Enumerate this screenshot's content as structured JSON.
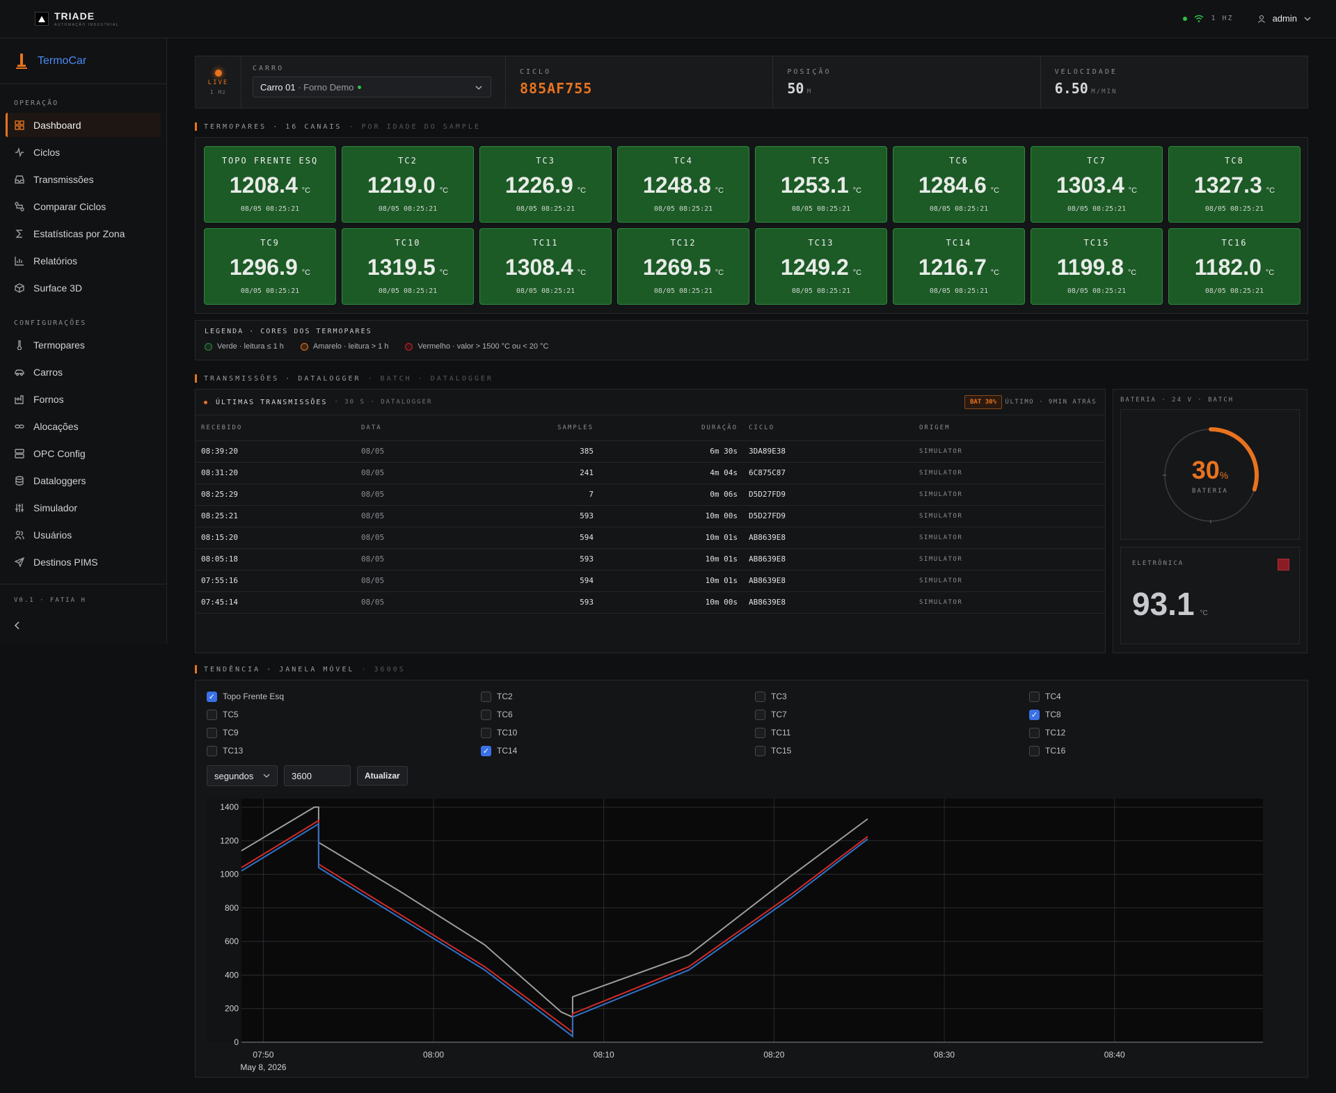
{
  "topbar": {
    "logo_title": "TRIADE",
    "logo_subtitle": "AUTOMAÇÃO INDUSTRIAL",
    "rate": "1 HZ",
    "user": "admin"
  },
  "sidebar": {
    "app_name": "TermoCar",
    "sections": [
      {
        "title": "OPERAÇÃO",
        "items": [
          {
            "label": "Dashboard",
            "icon": "grid-icon",
            "active": true
          },
          {
            "label": "Ciclos",
            "icon": "activity-icon"
          },
          {
            "label": "Transmissões",
            "icon": "inbox-icon"
          },
          {
            "label": "Comparar Ciclos",
            "icon": "compare-icon"
          },
          {
            "label": "Estatísticas por Zona",
            "icon": "sigma-icon"
          },
          {
            "label": "Relatórios",
            "icon": "bar-chart-icon"
          },
          {
            "label": "Surface 3D",
            "icon": "cube-icon"
          }
        ]
      },
      {
        "title": "CONFIGURAÇÕES",
        "items": [
          {
            "label": "Termopares",
            "icon": "thermometer-icon"
          },
          {
            "label": "Carros",
            "icon": "car-icon"
          },
          {
            "label": "Fornos",
            "icon": "factory-icon"
          },
          {
            "label": "Alocações",
            "icon": "link-icon"
          },
          {
            "label": "OPC Config",
            "icon": "server-icon"
          },
          {
            "label": "Dataloggers",
            "icon": "database-icon"
          },
          {
            "label": "Simulador",
            "icon": "sliders-icon"
          },
          {
            "label": "Usuários",
            "icon": "users-icon"
          },
          {
            "label": "Destinos PIMS",
            "icon": "send-icon"
          }
        ]
      }
    ],
    "version": "V0.1 · FATIA H"
  },
  "carbar": {
    "live": "LIVE",
    "live_rate": "1 Hz",
    "carro_label": "CARRO",
    "carro_name": "Carro 01",
    "carro_forno": " · Forno Demo",
    "ciclo_label": "CICLO",
    "ciclo_value": "885AF755",
    "posicao_label": "POSIÇÃO",
    "posicao_value": "50",
    "posicao_unit": "M",
    "velocidade_label": "VELOCIDADE",
    "velocidade_value": "6.50",
    "velocidade_unit": "M/MIN"
  },
  "termopares": {
    "header": "TERMOPARES · 16 CANAIS",
    "header_sub": "· POR IDADE DO SAMPLE",
    "unit": "°C",
    "items": [
      {
        "name": "TOPO FRENTE ESQ",
        "value": "1208.4",
        "ts": "08/05 08:25:21"
      },
      {
        "name": "TC2",
        "value": "1219.0",
        "ts": "08/05 08:25:21"
      },
      {
        "name": "TC3",
        "value": "1226.9",
        "ts": "08/05 08:25:21"
      },
      {
        "name": "TC4",
        "value": "1248.8",
        "ts": "08/05 08:25:21"
      },
      {
        "name": "TC5",
        "value": "1253.1",
        "ts": "08/05 08:25:21"
      },
      {
        "name": "TC6",
        "value": "1284.6",
        "ts": "08/05 08:25:21"
      },
      {
        "name": "TC7",
        "value": "1303.4",
        "ts": "08/05 08:25:21"
      },
      {
        "name": "TC8",
        "value": "1327.3",
        "ts": "08/05 08:25:21"
      },
      {
        "name": "TC9",
        "value": "1296.9",
        "ts": "08/05 08:25:21"
      },
      {
        "name": "TC10",
        "value": "1319.5",
        "ts": "08/05 08:25:21"
      },
      {
        "name": "TC11",
        "value": "1308.4",
        "ts": "08/05 08:25:21"
      },
      {
        "name": "TC12",
        "value": "1269.5",
        "ts": "08/05 08:25:21"
      },
      {
        "name": "TC13",
        "value": "1249.2",
        "ts": "08/05 08:25:21"
      },
      {
        "name": "TC14",
        "value": "1216.7",
        "ts": "08/05 08:25:21"
      },
      {
        "name": "TC15",
        "value": "1199.8",
        "ts": "08/05 08:25:21"
      },
      {
        "name": "TC16",
        "value": "1182.0",
        "ts": "08/05 08:25:21"
      }
    ]
  },
  "legend": {
    "title": "LEGENDA · CORES DOS TERMOPARES",
    "items": [
      {
        "label": "Verde · leitura ≤ 1 h",
        "color": "#2c8a3c"
      },
      {
        "label": "Amarelo · leitura > 1 h",
        "color": "#e8731f"
      },
      {
        "label": "Vermelho · valor > 1500 °C ou < 20 °C",
        "color": "#c8202a"
      }
    ]
  },
  "transmissoes": {
    "header": "TRANSMISSÕES · DATALOGGER",
    "header_sub": "· BATCH · DATALOGGER",
    "panel_title": "ÚLTIMAS TRANSMISSÕES",
    "panel_sub": "· 30 S · DATALOGGER",
    "bat_badge": "BAT 30%",
    "last": "ÚLTIMO · 9MIN ATRÁS",
    "columns": [
      "RECEBIDO",
      "DATA",
      "SAMPLES",
      "DURAÇÃO",
      "CICLO",
      "ORIGEM"
    ],
    "rows": [
      [
        "08:39:20",
        "08/05",
        "385",
        "6m 30s",
        "3DA89E38",
        "SIMULATOR"
      ],
      [
        "08:31:20",
        "08/05",
        "241",
        "4m 04s",
        "6C875C87",
        "SIMULATOR"
      ],
      [
        "08:25:29",
        "08/05",
        "7",
        "0m 06s",
        "D5D27FD9",
        "SIMULATOR"
      ],
      [
        "08:25:21",
        "08/05",
        "593",
        "10m 00s",
        "D5D27FD9",
        "SIMULATOR"
      ],
      [
        "08:15:20",
        "08/05",
        "594",
        "10m 01s",
        "AB8639E8",
        "SIMULATOR"
      ],
      [
        "08:05:18",
        "08/05",
        "593",
        "10m 01s",
        "AB8639E8",
        "SIMULATOR"
      ],
      [
        "07:55:16",
        "08/05",
        "594",
        "10m 01s",
        "AB8639E8",
        "SIMULATOR"
      ],
      [
        "07:45:14",
        "08/05",
        "593",
        "10m 00s",
        "AB8639E8",
        "SIMULATOR"
      ]
    ]
  },
  "bateria": {
    "header": "BATERIA · 24 V · BATCH",
    "level": 30,
    "value": "30",
    "unit": "%",
    "label": "BATERIA"
  },
  "eletronica": {
    "label": "ELETRÔNICA",
    "value": "93.1",
    "unit": "°C"
  },
  "tendencia": {
    "header": "TENDÊNCIA · JANELA MÓVEL",
    "header_sub": "· 3600S",
    "channels": [
      {
        "label": "Topo Frente Esq",
        "checked": true
      },
      {
        "label": "TC2"
      },
      {
        "label": "TC3"
      },
      {
        "label": "TC4"
      },
      {
        "label": "TC5"
      },
      {
        "label": "TC6"
      },
      {
        "label": "TC7"
      },
      {
        "label": "TC8",
        "checked": true
      },
      {
        "label": "TC9"
      },
      {
        "label": "TC10"
      },
      {
        "label": "TC11"
      },
      {
        "label": "TC12"
      },
      {
        "label": "TC13"
      },
      {
        "label": "TC14",
        "checked": true
      },
      {
        "label": "TC15"
      },
      {
        "label": "TC16"
      }
    ],
    "unit_select": "segundos",
    "window_value": "3600",
    "update_label": "Atualizar"
  },
  "chart_data": {
    "type": "line",
    "x_ticks": [
      "07:50",
      "08:00",
      "08:10",
      "08:20",
      "08:30",
      "08:40"
    ],
    "x_date_label": "May 8, 2026",
    "xlim": [
      "07:48:43",
      "08:48:43"
    ],
    "ylim": [
      0,
      1450
    ],
    "y_ticks": [
      0,
      200,
      400,
      600,
      800,
      1000,
      1200,
      1400
    ],
    "grid": true,
    "series": [
      {
        "color": "#9e9e9e",
        "points": [
          [
            "07:48:43",
            1140
          ],
          [
            "07:53:00",
            1400
          ],
          [
            "07:53:15",
            1400
          ],
          [
            "07:53:15",
            1190
          ],
          [
            "07:58:00",
            900
          ],
          [
            "08:03:00",
            580
          ],
          [
            "08:07:30",
            180
          ],
          [
            "08:08:10",
            150
          ],
          [
            "08:08:10",
            270
          ],
          [
            "08:15:00",
            520
          ],
          [
            "08:21:00",
            990
          ],
          [
            "08:25:30",
            1330
          ]
        ]
      },
      {
        "color": "#d42a2a",
        "points": [
          [
            "07:48:43",
            1040
          ],
          [
            "07:53:15",
            1320
          ],
          [
            "07:53:15",
            1060
          ],
          [
            "08:03:00",
            450
          ],
          [
            "08:08:10",
            60
          ],
          [
            "08:08:10",
            170
          ],
          [
            "08:15:00",
            450
          ],
          [
            "08:21:00",
            880
          ],
          [
            "08:25:30",
            1225
          ]
        ]
      },
      {
        "color": "#2f74c8",
        "points": [
          [
            "07:48:43",
            1020
          ],
          [
            "07:53:15",
            1300
          ],
          [
            "07:53:15",
            1040
          ],
          [
            "08:03:00",
            430
          ],
          [
            "08:08:10",
            35
          ],
          [
            "08:08:10",
            150
          ],
          [
            "08:15:00",
            430
          ],
          [
            "08:21:00",
            860
          ],
          [
            "08:25:30",
            1210
          ]
        ]
      }
    ]
  }
}
